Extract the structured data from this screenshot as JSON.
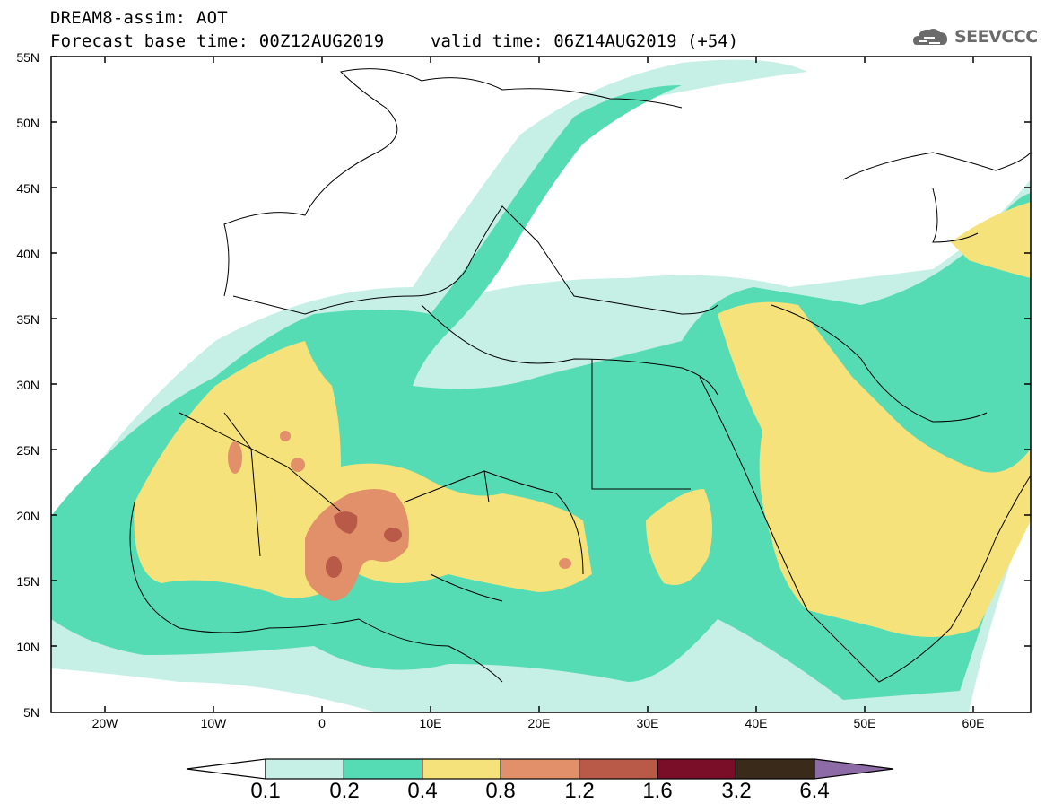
{
  "header": {
    "line1": "DREAM8-assim: AOT",
    "line2": "Forecast base time: 00Z12AUG2019",
    "valid": "valid time: 06Z14AUG2019 (+54)",
    "logo_text": "SEEVCCC"
  },
  "map": {
    "lat_labels": [
      "55N",
      "50N",
      "45N",
      "40N",
      "35N",
      "30N",
      "25N",
      "20N",
      "15N",
      "10N",
      "5N"
    ],
    "lon_labels": [
      "20W",
      "10W",
      "0",
      "10E",
      "20E",
      "30E",
      "40E",
      "50E",
      "60E"
    ],
    "colors": {
      "c01": "#c6efe6",
      "c02": "#56dcb4",
      "c04": "#f5e27a",
      "c08": "#e2906a",
      "c12": "#b95a48",
      "c16": "#7a0e28",
      "c32": "#3a2a1a",
      "c64": "#8d6ba6"
    }
  },
  "colorbar": {
    "labels": [
      "0.1",
      "0.2",
      "0.4",
      "0.8",
      "1.2",
      "1.6",
      "3.2",
      "6.4"
    ],
    "colors": [
      "#c6efe6",
      "#56dcb4",
      "#f5e27a",
      "#e2906a",
      "#b95a48",
      "#7a0e28",
      "#3a2a1a"
    ]
  }
}
